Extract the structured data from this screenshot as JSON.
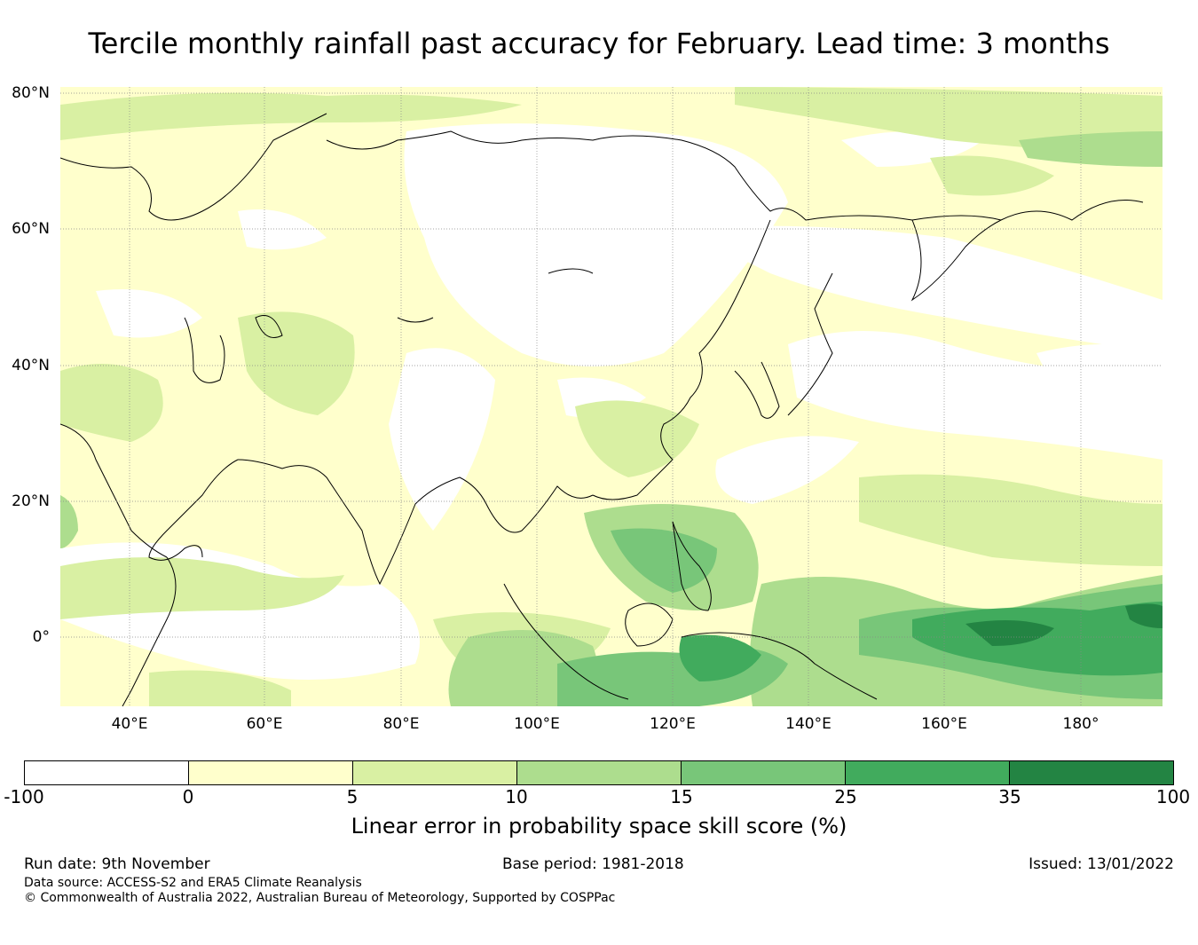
{
  "title": "Tercile monthly rainfall past accuracy for February. Lead time: 3 months",
  "map": {
    "lat_labels": [
      "80°N",
      "60°N",
      "40°N",
      "20°N",
      "0°"
    ],
    "lon_labels": [
      "40°E",
      "60°E",
      "80°E",
      "100°E",
      "120°E",
      "140°E",
      "160°E",
      "180°"
    ]
  },
  "colorbar": {
    "colors": [
      "#ffffff",
      "#ffffcc",
      "#d9f0a3",
      "#addd8e",
      "#78c679",
      "#41ab5d",
      "#238443"
    ],
    "ticks": [
      "-100",
      "0",
      "5",
      "10",
      "15",
      "25",
      "35",
      "100"
    ],
    "label": "Linear error in probability space skill score (%)"
  },
  "footer": {
    "run_date": "Run date: 9th November",
    "base_period": "Base period: 1981-2018",
    "issued": "Issued: 13/01/2022",
    "data_source": "Data source: ACCESS-S2 and ERA5 Climate Reanalysis",
    "copyright": "© Commonwealth of Australia 2022, Australian Bureau of Meteorology, Supported by COSPPac"
  }
}
